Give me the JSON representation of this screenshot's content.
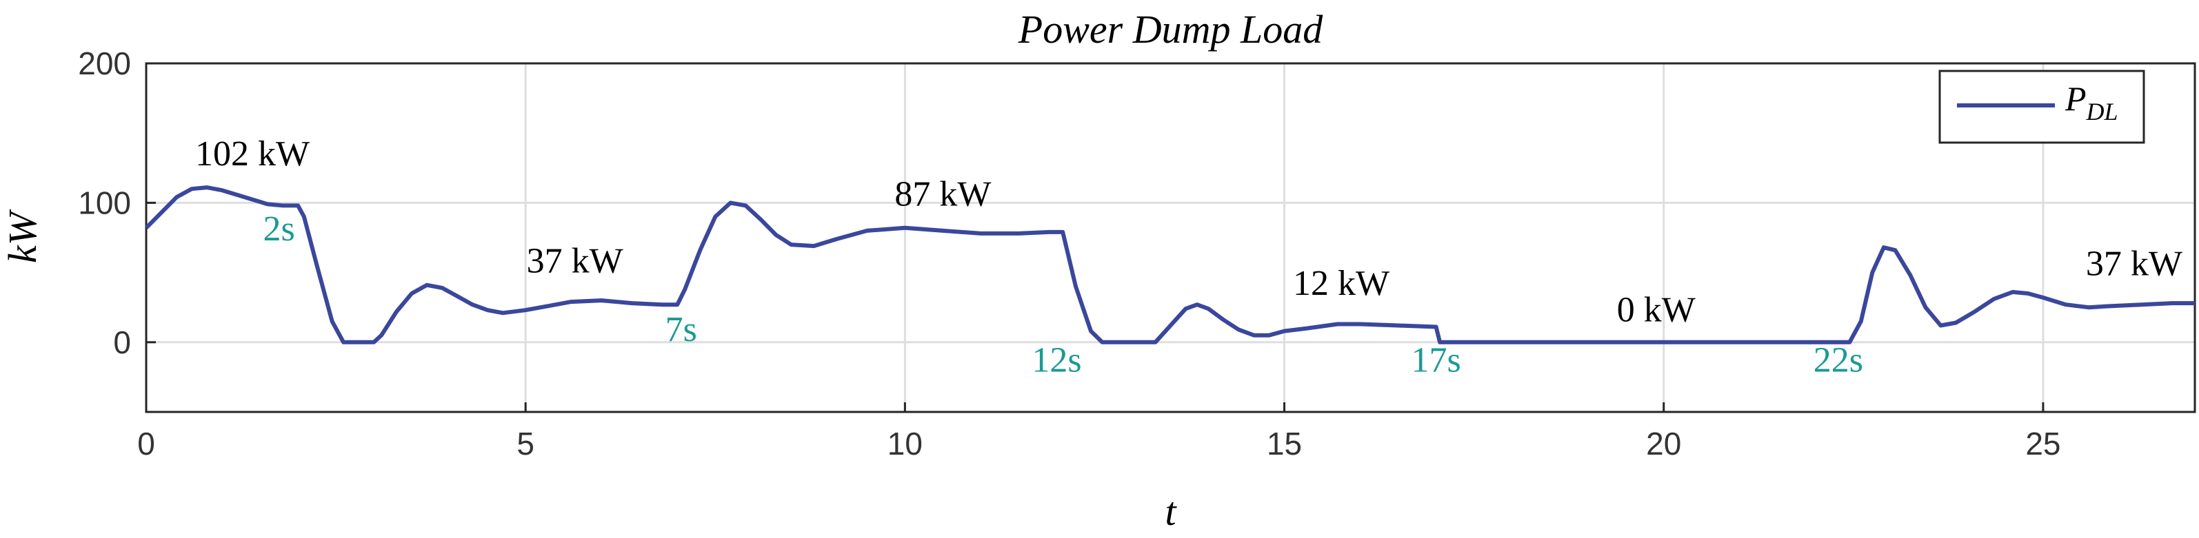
{
  "chart_data": {
    "type": "line",
    "title": "Power Dump Load",
    "xlabel": "t",
    "ylabel": "kW",
    "xlim": [
      0,
      27
    ],
    "ylim": [
      -50,
      200
    ],
    "xticks": [
      0,
      5,
      10,
      15,
      20,
      25
    ],
    "yticks": [
      0,
      100,
      200
    ],
    "xtick_labels": [
      "0",
      "5",
      "10",
      "15",
      "20",
      "25"
    ],
    "ytick_labels": [
      "0",
      "100",
      "200"
    ],
    "grid": true,
    "legend": "top-right",
    "series": [
      {
        "name": "P",
        "name_sub": "DL",
        "color": "#3a479c",
        "x": [
          0,
          0.2,
          0.4,
          0.6,
          0.8,
          1.0,
          1.3,
          1.6,
          1.8,
          2.0,
          2.08,
          2.25,
          2.45,
          2.6,
          2.7,
          3.0,
          3.1,
          3.3,
          3.5,
          3.7,
          3.9,
          4.1,
          4.3,
          4.5,
          4.7,
          5.0,
          5.3,
          5.6,
          6.0,
          6.4,
          6.8,
          7.0,
          7.1,
          7.3,
          7.5,
          7.7,
          7.9,
          8.1,
          8.3,
          8.5,
          8.8,
          9.1,
          9.5,
          10.0,
          10.5,
          11.0,
          11.5,
          11.9,
          12.08,
          12.25,
          12.45,
          12.6,
          13.0,
          13.3,
          13.5,
          13.7,
          13.85,
          14.0,
          14.2,
          14.4,
          14.6,
          14.8,
          15.0,
          15.3,
          15.7,
          16.0,
          16.5,
          17.0,
          17.05,
          18,
          20,
          22.0,
          22.45,
          22.6,
          22.75,
          22.9,
          23.05,
          23.25,
          23.45,
          23.65,
          23.85,
          24.1,
          24.35,
          24.6,
          24.8,
          25.0,
          25.3,
          25.6,
          25.9,
          26.3,
          26.7,
          27.0
        ],
        "values": [
          82,
          93,
          104,
          110,
          111,
          109,
          104,
          99,
          98,
          98,
          90,
          55,
          15,
          0,
          0,
          0,
          5,
          22,
          35,
          41,
          39,
          33,
          27,
          23,
          21,
          23,
          26,
          29,
          30,
          28,
          27,
          27,
          38,
          66,
          90,
          100,
          98,
          88,
          77,
          70,
          69,
          74,
          80,
          82,
          80,
          78,
          78,
          79,
          79,
          40,
          8,
          0,
          0,
          0,
          12,
          24,
          27,
          24,
          16,
          9,
          5,
          5,
          8,
          10,
          13,
          13,
          12,
          11,
          0,
          0,
          0,
          0,
          0,
          15,
          50,
          68,
          66,
          48,
          25,
          12,
          14,
          22,
          31,
          36,
          35,
          32,
          27,
          25,
          26,
          27,
          28,
          28
        ]
      }
    ],
    "annotations": [
      {
        "text": "102 kW",
        "x": 1.4,
        "y": 127
      },
      {
        "text": "37 kW",
        "x": 5.65,
        "y": 50
      },
      {
        "text": "87 kW",
        "x": 10.5,
        "y": 98
      },
      {
        "text": "12 kW",
        "x": 15.75,
        "y": 34
      },
      {
        "text": "0 kW",
        "x": 19.9,
        "y": 15
      },
      {
        "text": "37 kW",
        "x": 26.2,
        "y": 48
      }
    ],
    "time_labels": [
      {
        "text": "2s",
        "x": 1.75,
        "y": 73
      },
      {
        "text": "7s",
        "x": 7.05,
        "y": 1
      },
      {
        "text": "12s",
        "x": 12.0,
        "y": -21
      },
      {
        "text": "17s",
        "x": 17.0,
        "y": -21
      },
      {
        "text": "22s",
        "x": 22.3,
        "y": -21
      }
    ]
  }
}
